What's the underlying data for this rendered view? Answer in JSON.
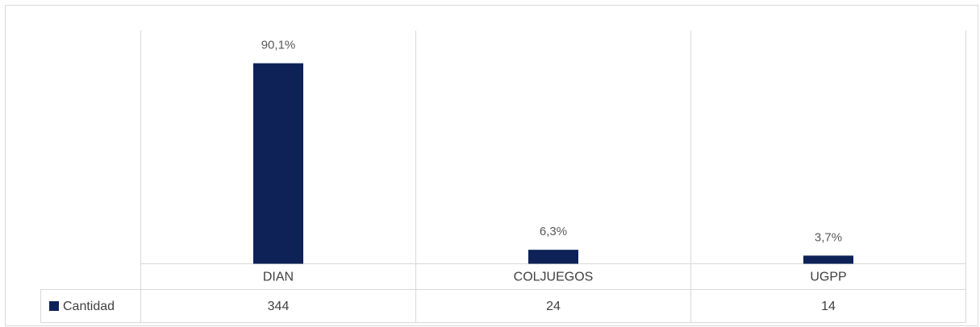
{
  "chart_data": {
    "type": "bar",
    "categories": [
      "DIAN",
      "COLJUEGOS",
      "UGPP"
    ],
    "series": [
      {
        "name": "Cantidad",
        "color": "#0e2257",
        "values": [
          344,
          24,
          14
        ],
        "data_labels": [
          "90,1%",
          "6,3%",
          "3,7%"
        ]
      }
    ],
    "ylim": [
      0,
      400
    ]
  }
}
